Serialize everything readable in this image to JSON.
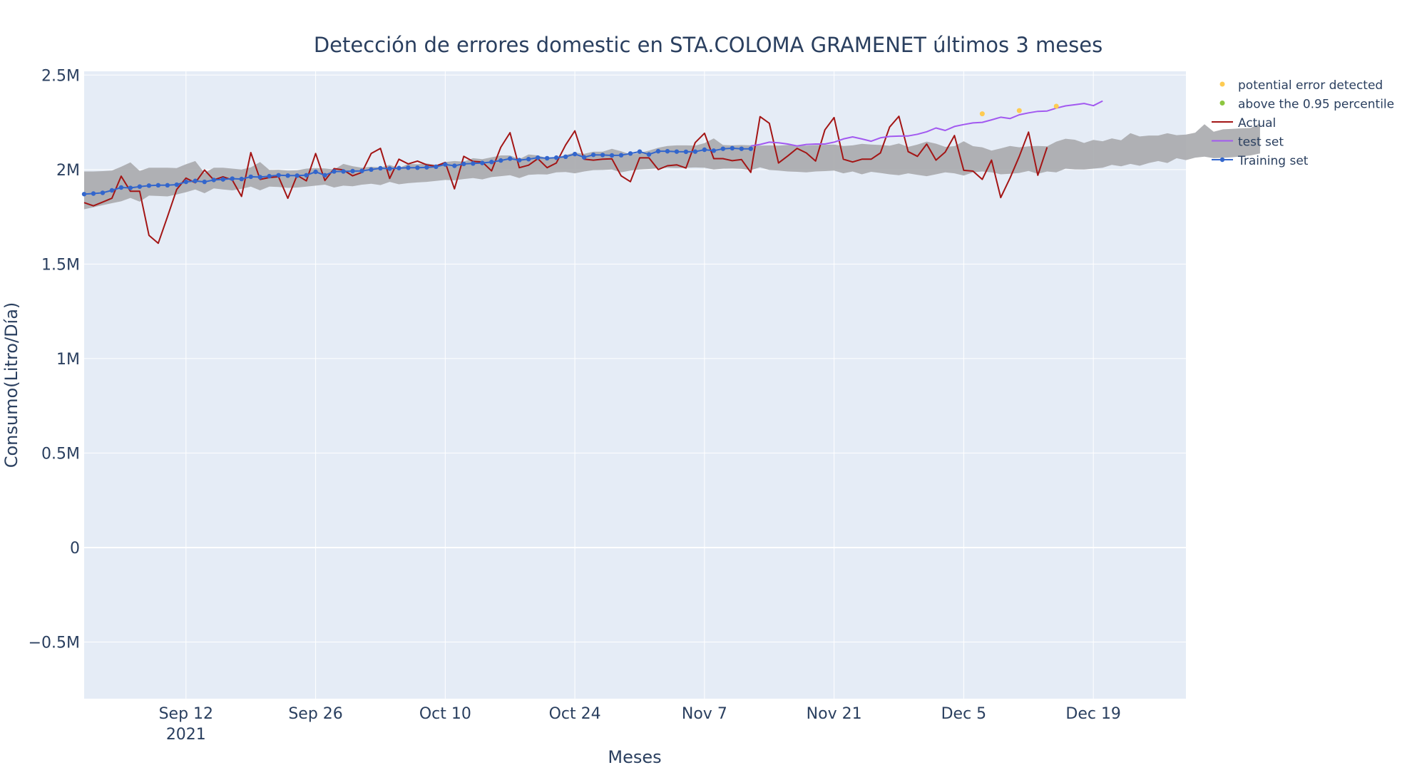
{
  "chart_data": {
    "type": "line",
    "title": "Detección de errores domestic en STA.COLOMA GRAMENET últimos 3 meses",
    "xlabel": "Meses",
    "ylabel": "Consumo(Litro/Día)",
    "xlim": [
      "2021-09-01",
      "2021-12-29"
    ],
    "ylim": [
      -800000,
      2520000
    ],
    "x_ticks": [
      {
        "date": "2021-09-12",
        "label": "Sep 12",
        "sublabel": "2021"
      },
      {
        "date": "2021-09-26",
        "label": "Sep 26"
      },
      {
        "date": "2021-10-10",
        "label": "Oct 10"
      },
      {
        "date": "2021-10-24",
        "label": "Oct 24"
      },
      {
        "date": "2021-11-07",
        "label": "Nov 7"
      },
      {
        "date": "2021-11-21",
        "label": "Nov 21"
      },
      {
        "date": "2021-12-05",
        "label": "Dec 5"
      },
      {
        "date": "2021-12-19",
        "label": "Dec 19"
      }
    ],
    "y_ticks": [
      {
        "value": -500000,
        "label": "−0.5M"
      },
      {
        "value": 0,
        "label": "0"
      },
      {
        "value": 500000,
        "label": "0.5M"
      },
      {
        "value": 1000000,
        "label": "1M"
      },
      {
        "value": 1500000,
        "label": "1.5M"
      },
      {
        "value": 2000000,
        "label": "2M"
      },
      {
        "value": 2500000,
        "label": "2.5M"
      }
    ],
    "grid": true,
    "legend_position": "right",
    "colors": {
      "plot_bg": "#e5ecf6",
      "band": "#a9aaad",
      "actual": "#a31515",
      "test": "#a259f0",
      "training": "#3366cc",
      "potential": "#fecb52",
      "above": "#8cc63f"
    },
    "start_date": "2021-09-01",
    "band": {
      "upper": [
        1990000,
        1990000,
        1992000,
        1995000,
        2015000,
        2038000,
        1993000,
        2010000,
        2010000,
        2010000,
        2008000,
        2028000,
        2045000,
        1982000,
        2010000,
        2010000,
        2005000,
        2000000,
        2012000,
        2040000,
        1998000,
        1999000,
        1995000,
        1996000,
        2005000,
        2008000,
        2006000,
        2000000,
        2030000,
        2018000,
        2010000,
        2015000,
        2012000,
        2025000,
        2008000,
        2030000,
        2028000,
        2032000,
        2025000,
        2040000,
        2045000,
        2042000,
        2060000,
        2055000,
        2065000,
        2075000,
        2075000,
        2055000,
        2080000,
        2075000,
        2060000,
        2063000,
        2077000,
        2090000,
        2083000,
        2095000,
        2095000,
        2110000,
        2097000,
        2080000,
        2088000,
        2100000,
        2115000,
        2125000,
        2128000,
        2128000,
        2127000,
        2140000,
        2165000,
        2130000,
        2128000,
        2130000,
        2128000,
        2127000,
        2128000,
        2127000,
        2130000,
        2128000,
        2127000,
        2130000,
        2131000,
        2132000,
        2125000,
        2128000,
        2136000,
        2132000,
        2130000,
        2126000,
        2138000,
        2120000,
        2132000,
        2148000,
        2137000,
        2120000,
        2124000,
        2150000,
        2124000,
        2118000,
        2100000,
        2112000,
        2125000,
        2118000,
        2123000,
        2125000,
        2123000,
        2148000,
        2163000,
        2158000,
        2141000,
        2157000,
        2150000,
        2165000,
        2155000,
        2193000,
        2175000,
        2180000,
        2180000,
        2192000,
        2182000,
        2185000,
        2195000,
        2240000,
        2200000,
        2213000,
        2215000,
        2218000,
        2220000,
        2245000
      ],
      "lower": [
        1790000,
        1800000,
        1812000,
        1822000,
        1832000,
        1850000,
        1830000,
        1862000,
        1860000,
        1858000,
        1868000,
        1880000,
        1895000,
        1875000,
        1900000,
        1895000,
        1890000,
        1898000,
        1910000,
        1890000,
        1910000,
        1908000,
        1903000,
        1905000,
        1910000,
        1915000,
        1920000,
        1905000,
        1915000,
        1912000,
        1920000,
        1925000,
        1918000,
        1935000,
        1922000,
        1928000,
        1932000,
        1935000,
        1940000,
        1945000,
        1943000,
        1950000,
        1955000,
        1948000,
        1960000,
        1965000,
        1970000,
        1955000,
        1972000,
        1975000,
        1974000,
        1985000,
        1987000,
        1980000,
        1990000,
        1997000,
        1998000,
        2000000,
        1985000,
        1995000,
        2000000,
        2003000,
        2007000,
        2010000,
        2008000,
        2010000,
        2011000,
        2010000,
        2000000,
        2005000,
        2006000,
        2004000,
        1997000,
        2012000,
        1998000,
        1995000,
        1990000,
        1988000,
        1985000,
        1990000,
        1992000,
        1995000,
        1980000,
        1990000,
        1975000,
        1988000,
        1982000,
        1975000,
        1970000,
        1980000,
        1972000,
        1965000,
        1975000,
        1985000,
        1980000,
        1968000,
        1985000,
        1990000,
        1985000,
        1975000,
        1978000,
        1982000,
        1993000,
        1978000,
        1990000,
        1985000,
        2005000,
        2001000,
        2000000,
        2005000,
        2010000,
        2025000,
        2017000,
        2030000,
        2020000,
        2035000,
        2045000,
        2035000,
        2060000,
        2050000,
        2063000,
        2068000,
        2060000,
        2062000,
        2065000,
        2070000,
        2075000,
        2085000
      ]
    },
    "series": [
      {
        "name": "Actual",
        "day_offset": 0,
        "values": [
          1825000,
          1808000,
          1828000,
          1848000,
          1965000,
          1885000,
          1885000,
          1652000,
          1610000,
          1750000,
          1895000,
          1955000,
          1930000,
          1998000,
          1945000,
          1962000,
          1945000,
          1858000,
          2090000,
          1948000,
          1958000,
          1962000,
          1848000,
          1970000,
          1940000,
          2085000,
          1942000,
          2005000,
          1998000,
          1967000,
          1985000,
          2085000,
          2112000,
          1953000,
          2055000,
          2030000,
          2045000,
          2025000,
          2018000,
          2038000,
          1898000,
          2070000,
          2043000,
          2040000,
          1993000,
          2118000,
          2195000,
          2010000,
          2023000,
          2058000,
          2010000,
          2035000,
          2130000,
          2205000,
          2055000,
          2050000,
          2055000,
          2057000,
          1967000,
          1936000,
          2062000,
          2062000,
          2000000,
          2020000,
          2025000,
          2008000,
          2143000,
          2192000,
          2058000,
          2058000,
          2047000,
          2053000,
          1985000,
          2280000,
          2245000,
          2035000,
          2072000,
          2112000,
          2088000,
          2045000,
          2210000,
          2275000,
          2055000,
          2040000,
          2055000,
          2055000,
          2088000,
          2225000,
          2282000,
          2095000,
          2070000,
          2135000,
          2050000,
          2092000,
          2180000,
          1996000,
          1992000,
          1948000,
          2050000,
          1852000,
          1955000,
          2070000,
          2198000,
          1970000,
          2118000
        ]
      },
      {
        "name": "test set",
        "day_offset": 72,
        "values": [
          2125000,
          2133000,
          2145000,
          2142000,
          2135000,
          2125000,
          2133000,
          2135000,
          2135000,
          2145000,
          2162000,
          2173000,
          2162000,
          2150000,
          2168000,
          2175000,
          2177000,
          2178000,
          2187000,
          2200000,
          2220000,
          2207000,
          2228000,
          2238000,
          2247000,
          2250000,
          2263000,
          2277000,
          2270000,
          2290000,
          2300000,
          2308000,
          2310000,
          2325000,
          2337000,
          2343000,
          2350000,
          2338000,
          2363000
        ]
      },
      {
        "name": "Training set",
        "day_offset": 0,
        "values": [
          1870000,
          1873000,
          1877000,
          1890000,
          1905000,
          1903000,
          1910000,
          1915000,
          1917000,
          1917000,
          1920000,
          1935000,
          1940000,
          1935000,
          1945000,
          1948000,
          1952000,
          1950000,
          1962000,
          1960000,
          1965000,
          1970000,
          1968000,
          1968000,
          1970000,
          1988000,
          1970000,
          1990000,
          1990000,
          1992000,
          1993000,
          2000000,
          2007000,
          2005000,
          2008000,
          2010000,
          2010000,
          2012000,
          2015000,
          2027000,
          2020000,
          2030000,
          2032000,
          2035000,
          2040000,
          2048000,
          2058000,
          2050000,
          2055000,
          2063000,
          2060000,
          2063000,
          2068000,
          2082000,
          2065000,
          2078000,
          2077000,
          2075000,
          2076000,
          2085000,
          2095000,
          2080000,
          2097000,
          2097000,
          2095000,
          2094000,
          2095000,
          2105000,
          2100000,
          2110000,
          2113000,
          2110000,
          2110000
        ]
      }
    ],
    "potential_error_detected": {
      "name": "potential error detected",
      "points": [
        {
          "x": "2021-12-07",
          "y": 2295000
        },
        {
          "x": "2021-12-11",
          "y": 2312000
        },
        {
          "x": "2021-12-15",
          "y": 2335000
        }
      ]
    },
    "above_percentile": {
      "name": "above the 0.95 percentile",
      "points": []
    },
    "legend": [
      {
        "key": "potential",
        "label": "potential error detected",
        "kind": "marker"
      },
      {
        "key": "above",
        "label": "above the 0.95 percentile",
        "kind": "marker"
      },
      {
        "key": "actual",
        "label": "Actual",
        "kind": "line"
      },
      {
        "key": "test",
        "label": "test set",
        "kind": "line"
      },
      {
        "key": "training",
        "label": "Training set",
        "kind": "line-marker"
      }
    ]
  }
}
